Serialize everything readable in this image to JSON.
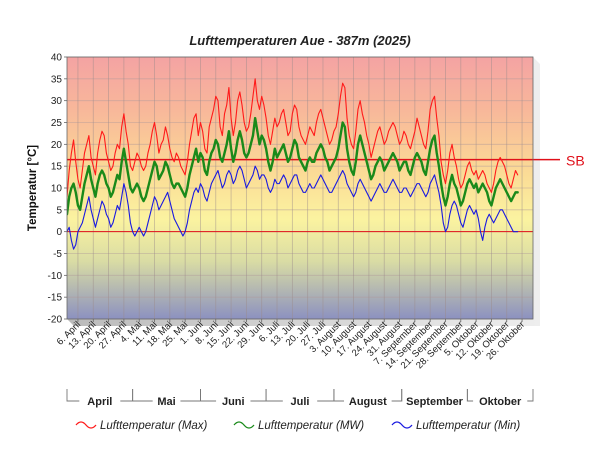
{
  "chart_data": {
    "type": "line",
    "title": "Lufttemperaturen Aue - 387m (2025)",
    "ylabel": "Temperatur [°C]",
    "xlabel": "",
    "ylim": [
      -20,
      40
    ],
    "yticks": [
      40,
      35,
      30,
      25,
      20,
      15,
      10,
      5,
      0,
      -5,
      -10,
      -15,
      -20
    ],
    "grid": true,
    "legend_position": "bottom",
    "x_start": "2025-04-01",
    "x_end": "2025-10-31",
    "x_tick_labels": [
      "6. April",
      "13. April",
      "20. April",
      "27. April",
      "4. Mai",
      "11. Mai",
      "18. Mai",
      "25. Mai",
      "1. Juni",
      "8. Juni",
      "15. Juni",
      "22. Juni",
      "29. Juni",
      "6. Juli",
      "13. Juli",
      "20. Juli",
      "27. Juli",
      "3. August",
      "10. August",
      "17. August",
      "24. August",
      "31. August",
      "7. September",
      "14. September",
      "21. September",
      "28. September",
      "5. Oktober",
      "12. Oktober",
      "19. Oktober",
      "26. Oktober"
    ],
    "months": [
      "April",
      "Mai",
      "Juni",
      "Juli",
      "August",
      "September",
      "Oktober"
    ],
    "reference_line": {
      "label": "SB",
      "value": 16.5,
      "color": "#e0101a"
    },
    "zero_line_color": "#e0101a",
    "colors": {
      "max": "#ff1a1a",
      "mw": "#1a8a1a",
      "min": "#1a1ae0"
    },
    "series": [
      {
        "name": "Lufttemperatur (Max)",
        "values": [
          8,
          14,
          18,
          21,
          16,
          12,
          10,
          14,
          18,
          20,
          22,
          17,
          15,
          13,
          18,
          21,
          23,
          22,
          18,
          16,
          14,
          15,
          18,
          20,
          19,
          24,
          27,
          23,
          20,
          15,
          14,
          16,
          18,
          17,
          15,
          14,
          15,
          18,
          20,
          23,
          25,
          22,
          18,
          20,
          21,
          24,
          22,
          19,
          17,
          16,
          18,
          17,
          15,
          14,
          13,
          16,
          20,
          23,
          26,
          27,
          22,
          25,
          23,
          19,
          18,
          24,
          26,
          28,
          31,
          30,
          24,
          22,
          27,
          29,
          33,
          26,
          22,
          25,
          30,
          32,
          29,
          25,
          23,
          24,
          27,
          31,
          35,
          30,
          28,
          31,
          29,
          26,
          22,
          20,
          23,
          26,
          24,
          25,
          27,
          28,
          25,
          22,
          23,
          27,
          29,
          28,
          24,
          22,
          21,
          20,
          22,
          24,
          23,
          22,
          25,
          27,
          28,
          26,
          24,
          22,
          20,
          21,
          23,
          24,
          27,
          31,
          34,
          33,
          26,
          22,
          20,
          19,
          23,
          28,
          30,
          27,
          25,
          22,
          20,
          17,
          19,
          21,
          23,
          24,
          22,
          20,
          21,
          23,
          24,
          25,
          24,
          22,
          20,
          21,
          23,
          22,
          20,
          19,
          21,
          23,
          26,
          24,
          22,
          20,
          19,
          23,
          28,
          30,
          31,
          26,
          22,
          16,
          13,
          11,
          14,
          18,
          20,
          17,
          15,
          12,
          10,
          11,
          13,
          15,
          16,
          14,
          13,
          14,
          12,
          13,
          14,
          13,
          11,
          10,
          9,
          11,
          14,
          16,
          17,
          16,
          15,
          13,
          11,
          10,
          12,
          14,
          13
        ]
      },
      {
        "name": "Lufttemperatur (MW)",
        "values": [
          4,
          8,
          10,
          11,
          9,
          6,
          5,
          8,
          11,
          13,
          15,
          12,
          10,
          8,
          11,
          13,
          14,
          13,
          11,
          10,
          8,
          9,
          11,
          13,
          12,
          16,
          19,
          16,
          13,
          10,
          9,
          10,
          11,
          10,
          8,
          7,
          8,
          10,
          12,
          14,
          16,
          15,
          12,
          13,
          14,
          16,
          15,
          13,
          11,
          10,
          11,
          11,
          10,
          9,
          8,
          10,
          13,
          15,
          17,
          19,
          16,
          18,
          17,
          14,
          13,
          16,
          18,
          19,
          21,
          20,
          17,
          16,
          18,
          20,
          23,
          19,
          16,
          18,
          21,
          23,
          21,
          18,
          17,
          18,
          20,
          22,
          26,
          23,
          20,
          22,
          21,
          19,
          16,
          14,
          16,
          19,
          17,
          18,
          19,
          20,
          18,
          16,
          17,
          19,
          21,
          20,
          17,
          16,
          15,
          14,
          16,
          17,
          16,
          16,
          18,
          19,
          20,
          19,
          17,
          16,
          14,
          15,
          16,
          17,
          19,
          22,
          25,
          24,
          19,
          16,
          14,
          13,
          16,
          20,
          22,
          20,
          18,
          16,
          14,
          12,
          13,
          15,
          16,
          17,
          16,
          14,
          15,
          16,
          17,
          18,
          17,
          16,
          14,
          15,
          16,
          16,
          14,
          13,
          15,
          17,
          18,
          17,
          16,
          14,
          13,
          16,
          19,
          21,
          22,
          18,
          15,
          11,
          8,
          6,
          8,
          11,
          13,
          11,
          10,
          8,
          6,
          7,
          9,
          11,
          12,
          11,
          10,
          11,
          9,
          10,
          11,
          10,
          9,
          7,
          6,
          8,
          10,
          11,
          12,
          11,
          10,
          9,
          8,
          7,
          8,
          9,
          9
        ]
      },
      {
        "name": "Lufttemperatur (Min)",
        "values": [
          0,
          1,
          -2,
          -4,
          -3,
          0,
          1,
          2,
          4,
          6,
          8,
          5,
          3,
          1,
          3,
          5,
          7,
          6,
          4,
          3,
          1,
          2,
          4,
          6,
          5,
          8,
          11,
          9,
          6,
          2,
          0,
          -1,
          0,
          1,
          0,
          -1,
          0,
          2,
          4,
          6,
          8,
          7,
          5,
          6,
          7,
          8,
          9,
          7,
          5,
          3,
          2,
          1,
          0,
          -1,
          0,
          2,
          5,
          7,
          9,
          10,
          9,
          11,
          10,
          8,
          7,
          9,
          11,
          12,
          13,
          14,
          12,
          10,
          11,
          13,
          14,
          13,
          11,
          12,
          14,
          15,
          14,
          12,
          10,
          11,
          12,
          13,
          15,
          14,
          12,
          13,
          13,
          12,
          10,
          9,
          10,
          12,
          11,
          11,
          12,
          13,
          12,
          10,
          11,
          12,
          13,
          13,
          11,
          10,
          9,
          9,
          10,
          11,
          10,
          10,
          11,
          12,
          13,
          12,
          11,
          10,
          9,
          9,
          10,
          11,
          12,
          13,
          14,
          13,
          11,
          10,
          9,
          8,
          9,
          11,
          12,
          11,
          10,
          9,
          8,
          7,
          8,
          9,
          10,
          11,
          10,
          9,
          9,
          10,
          11,
          12,
          11,
          10,
          9,
          9,
          10,
          10,
          9,
          8,
          9,
          10,
          11,
          11,
          10,
          9,
          8,
          9,
          11,
          12,
          13,
          11,
          9,
          6,
          2,
          0,
          1,
          4,
          6,
          7,
          6,
          4,
          2,
          1,
          3,
          5,
          6,
          5,
          4,
          5,
          3,
          0,
          -2,
          1,
          3,
          4,
          3,
          2,
          3,
          4,
          5,
          5,
          4,
          3,
          2,
          1,
          0,
          0,
          0
        ]
      }
    ]
  }
}
